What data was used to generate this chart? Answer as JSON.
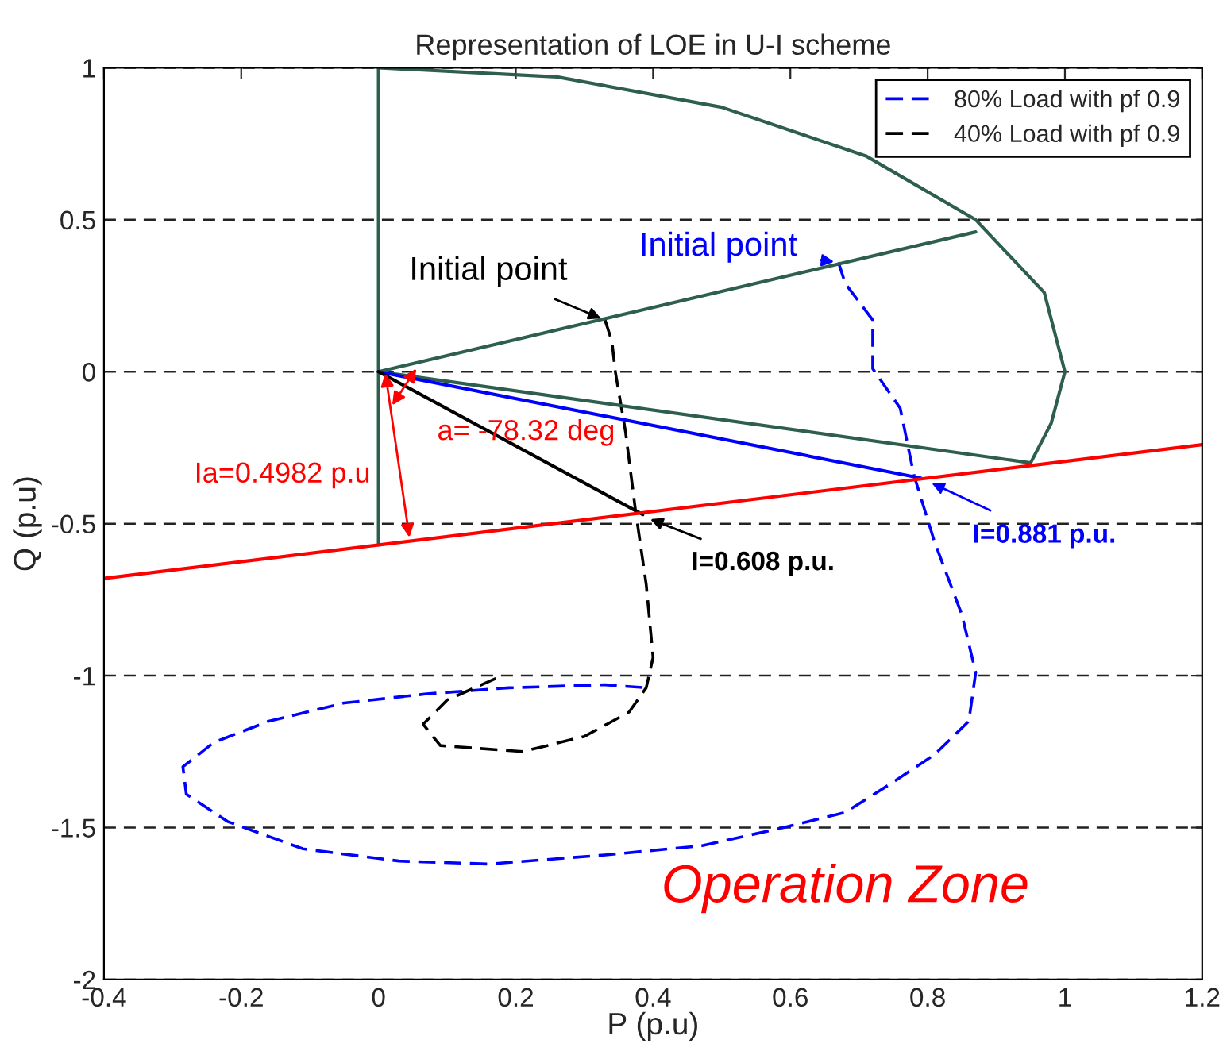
{
  "chart_data": {
    "type": "line",
    "title": "Representation of LOE in U-I scheme",
    "xlabel": "P (p.u)",
    "ylabel": "Q (p.u)",
    "xlim": [
      -0.4,
      1.2
    ],
    "ylim": [
      -2,
      1
    ],
    "xticks": [
      -0.4,
      -0.2,
      0,
      0.2,
      0.4,
      0.6,
      0.8,
      1,
      1.2
    ],
    "yticks": [
      -2,
      -1.5,
      -1,
      -0.5,
      0,
      0.5,
      1
    ],
    "grid": "y",
    "legend": "top right",
    "marker": "none",
    "series": [
      {
        "name": "80% Load with pf 0.9",
        "color": "#0000ff",
        "line_style": "dashed",
        "x": [
          0.67,
          0.68,
          0.72,
          0.72,
          0.76,
          0.78,
          0.81,
          0.85,
          0.87,
          0.86,
          0.81,
          0.75,
          0.68,
          0.59,
          0.47,
          0.33,
          0.16,
          0.03,
          -0.11,
          -0.22,
          -0.28,
          -0.285,
          -0.24,
          -0.16,
          -0.05,
          0.07,
          0.19,
          0.33,
          0.39
        ],
        "values": [
          0.36,
          0.29,
          0.17,
          0.01,
          -0.12,
          -0.34,
          -0.56,
          -0.8,
          -0.99,
          -1.15,
          -1.26,
          -1.35,
          -1.45,
          -1.5,
          -1.56,
          -1.59,
          -1.62,
          -1.61,
          -1.57,
          -1.48,
          -1.39,
          -1.3,
          -1.22,
          -1.15,
          -1.09,
          -1.06,
          -1.04,
          -1.03,
          -1.04
        ]
      },
      {
        "name": "40% Load with pf 0.9",
        "color": "#000000",
        "line_style": "dashed",
        "x": [
          0.33,
          0.34,
          0.345,
          0.36,
          0.374,
          0.39,
          0.4,
          0.39,
          0.365,
          0.3,
          0.21,
          0.09,
          0.065,
          0.1,
          0.18
        ],
        "values": [
          0.17,
          0.1,
          0.0,
          -0.2,
          -0.45,
          -0.7,
          -0.94,
          -1.04,
          -1.12,
          -1.2,
          -1.25,
          -1.23,
          -1.16,
          -1.08,
          -1.0
        ]
      },
      {
        "color": "#2e5e4e",
        "line_style": "solid",
        "x": [
          0,
          0
        ],
        "values": [
          -0.57,
          1
        ]
      },
      {
        "color": "#2e5e4e",
        "line_style": "solid",
        "x": [
          0,
          0.26,
          0.5,
          0.71,
          0.87,
          0.97,
          1.0,
          0.98,
          0.95
        ],
        "values": [
          1,
          0.97,
          0.87,
          0.71,
          0.5,
          0.26,
          0,
          -0.17,
          -0.3
        ]
      },
      {
        "color": "#2e5e4e",
        "line_style": "solid",
        "x": [
          0,
          0.87
        ],
        "values": [
          0,
          0.46
        ]
      },
      {
        "color": "#2e5e4e",
        "line_style": "solid",
        "x": [
          0,
          0.95
        ],
        "values": [
          0,
          -0.3
        ]
      },
      {
        "color": "#0000ff",
        "line_style": "solid",
        "x": [
          0,
          0.79
        ],
        "values": [
          0,
          -0.35
        ]
      },
      {
        "color": "#000000",
        "line_style": "solid",
        "x": [
          0,
          0.385
        ],
        "values": [
          0,
          -0.47
        ]
      },
      {
        "color": "#ff0000",
        "line_style": "solid",
        "x": [
          -0.4,
          1.2
        ],
        "values": [
          -0.68,
          -0.24
        ]
      }
    ],
    "annotations": [
      {
        "text": "Initial point",
        "x": 0.33,
        "y": 0.17
      },
      {
        "text": "Initial point",
        "x": 0.67,
        "y": 0.36
      },
      {
        "text": "I=0.608 p.u.",
        "x": 0.39,
        "y": -0.48
      },
      {
        "text": "I=0.881 p.u.",
        "x": 0.8,
        "y": -0.36
      },
      {
        "text": "a= -78.32 deg",
        "x": 0.055,
        "y": 0.01
      },
      {
        "text": "Ia=0.4982 p.u",
        "x": 0.045,
        "y": -0.545
      },
      "Operation Zone"
    ]
  }
}
